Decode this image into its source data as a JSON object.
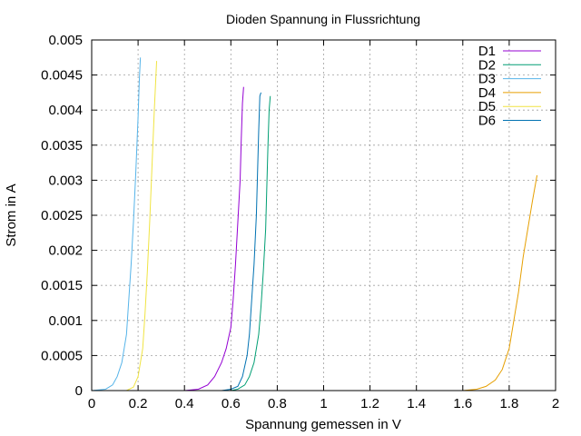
{
  "chart_data": {
    "type": "line",
    "title": "Dioden Spannung in Flussrichtung",
    "xlabel": "Spannung gemessen in V",
    "ylabel": "Strom in A",
    "xlim": [
      0,
      2
    ],
    "ylim": [
      0,
      0.005
    ],
    "xticks": [
      0,
      0.2,
      0.4,
      0.6,
      0.8,
      1,
      1.2,
      1.4,
      1.6,
      1.8,
      2
    ],
    "xtick_labels": [
      "0",
      "0.2",
      "0.4",
      "0.6",
      "0.8",
      "1",
      "1.2",
      "1.4",
      "1.6",
      "1.8",
      "2"
    ],
    "yticks": [
      0,
      0.0005,
      0.001,
      0.0015,
      0.002,
      0.0025,
      0.003,
      0.0035,
      0.004,
      0.0045,
      0.005
    ],
    "ytick_labels": [
      "0",
      "0.0005",
      "0.001",
      "0.0015",
      "0.002",
      "0.0025",
      "0.003",
      "0.0035",
      "0.004",
      "0.0045",
      "0.005"
    ],
    "grid": true,
    "legend_position": "top-right",
    "series": [
      {
        "name": "D1",
        "color": "#9400d3",
        "points": [
          [
            0.4,
            0
          ],
          [
            0.46,
            2e-05
          ],
          [
            0.5,
            8e-05
          ],
          [
            0.53,
            0.0002
          ],
          [
            0.56,
            0.0004
          ],
          [
            0.58,
            0.0006
          ],
          [
            0.6,
            0.0009
          ],
          [
            0.61,
            0.0013
          ],
          [
            0.62,
            0.0018
          ],
          [
            0.63,
            0.0024
          ],
          [
            0.64,
            0.003
          ],
          [
            0.645,
            0.0036
          ],
          [
            0.65,
            0.0041
          ],
          [
            0.655,
            0.00433
          ]
        ]
      },
      {
        "name": "D2",
        "color": "#009e73",
        "points": [
          [
            0.6,
            0
          ],
          [
            0.63,
            2e-05
          ],
          [
            0.66,
            8e-05
          ],
          [
            0.68,
            0.0002
          ],
          [
            0.7,
            0.0004
          ],
          [
            0.72,
            0.0008
          ],
          [
            0.73,
            0.0012
          ],
          [
            0.74,
            0.0017
          ],
          [
            0.75,
            0.0023
          ],
          [
            0.755,
            0.0029
          ],
          [
            0.76,
            0.0035
          ],
          [
            0.765,
            0.004
          ],
          [
            0.77,
            0.0042
          ]
        ]
      },
      {
        "name": "D3",
        "color": "#56b4e9",
        "points": [
          [
            0,
            0
          ],
          [
            0.06,
            2e-05
          ],
          [
            0.09,
            8e-05
          ],
          [
            0.11,
            0.0002
          ],
          [
            0.13,
            0.0004
          ],
          [
            0.15,
            0.0008
          ],
          [
            0.16,
            0.0013
          ],
          [
            0.17,
            0.0018
          ],
          [
            0.18,
            0.0024
          ],
          [
            0.19,
            0.0031
          ],
          [
            0.2,
            0.0039
          ],
          [
            0.205,
            0.0044
          ],
          [
            0.21,
            0.00475
          ]
        ]
      },
      {
        "name": "D4",
        "color": "#e69f00",
        "points": [
          [
            1.6,
            0
          ],
          [
            1.66,
            2e-05
          ],
          [
            1.7,
            6e-05
          ],
          [
            1.74,
            0.00015
          ],
          [
            1.77,
            0.0003
          ],
          [
            1.8,
            0.0006
          ],
          [
            1.82,
            0.001
          ],
          [
            1.84,
            0.0014
          ],
          [
            1.86,
            0.0019
          ],
          [
            1.88,
            0.0023
          ],
          [
            1.9,
            0.0027
          ],
          [
            1.92,
            0.00307
          ]
        ]
      },
      {
        "name": "D5",
        "color": "#f0e442",
        "points": [
          [
            0.15,
            0
          ],
          [
            0.18,
            5e-05
          ],
          [
            0.2,
            0.0002
          ],
          [
            0.22,
            0.0006
          ],
          [
            0.23,
            0.0011
          ],
          [
            0.24,
            0.0017
          ],
          [
            0.25,
            0.0024
          ],
          [
            0.26,
            0.0032
          ],
          [
            0.27,
            0.004
          ],
          [
            0.28,
            0.0047
          ]
        ]
      },
      {
        "name": "D6",
        "color": "#0072b2",
        "points": [
          [
            0.56,
            0
          ],
          [
            0.6,
            2e-05
          ],
          [
            0.63,
            6e-05
          ],
          [
            0.65,
            0.0002
          ],
          [
            0.67,
            0.0005
          ],
          [
            0.68,
            0.0008
          ],
          [
            0.69,
            0.0013
          ],
          [
            0.7,
            0.0018
          ],
          [
            0.71,
            0.0025
          ],
          [
            0.715,
            0.0031
          ],
          [
            0.72,
            0.0037
          ],
          [
            0.725,
            0.0042
          ],
          [
            0.73,
            0.00425
          ]
        ]
      }
    ]
  }
}
